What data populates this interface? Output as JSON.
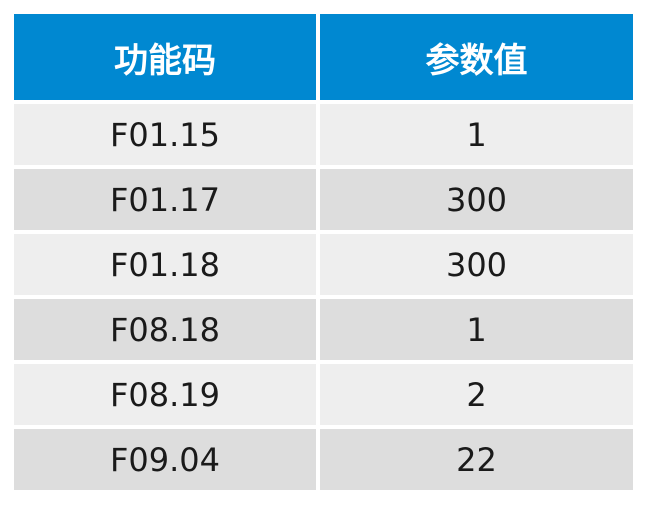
{
  "colors": {
    "header": "#0088d1",
    "row_light": "#eeeeee",
    "row_dark": "#dddddd"
  },
  "table": {
    "headers": [
      "功能码",
      "参数值"
    ],
    "rows": [
      [
        "F01.15",
        "1"
      ],
      [
        "F01.17",
        "300"
      ],
      [
        "F01.18",
        "300"
      ],
      [
        "F08.18",
        "1"
      ],
      [
        "F08.19",
        "2"
      ],
      [
        "F09.04",
        "22"
      ]
    ]
  }
}
